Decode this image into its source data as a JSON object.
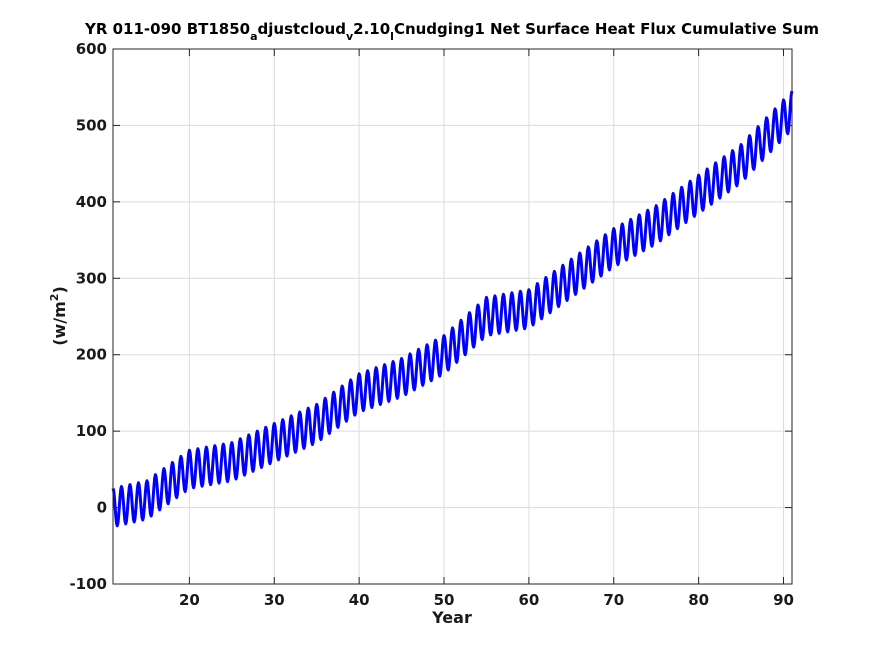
{
  "chart_data": {
    "type": "line",
    "title": {
      "p1": "YR 011-090 BT1850",
      "s1": "a",
      "p2": "djustcloud",
      "s2": "v",
      "p3": "2.10",
      "s3": "l",
      "p4": "Cnudging1 Net Surface Heat Flux  Cumulative Sum"
    },
    "xlabel": "Year",
    "ylabel": {
      "base": "(w/m",
      "sup": "2",
      "close": ")"
    },
    "xlim": [
      11,
      91
    ],
    "ylim": [
      -100,
      600
    ],
    "xticks": [
      20,
      30,
      40,
      50,
      60,
      70,
      80,
      90
    ],
    "yticks": [
      -100,
      0,
      100,
      200,
      300,
      400,
      500,
      600
    ],
    "grid": true,
    "series": [
      {
        "color": "#0000ff",
        "sampling": "monthly",
        "seasonal_amplitude": 25,
        "trend": {
          "years": [
            11,
            15,
            20,
            25,
            30,
            35,
            40,
            45,
            50,
            55,
            60,
            65,
            70,
            75,
            80,
            85,
            91
          ],
          "values": [
            0,
            10,
            50,
            60,
            85,
            110,
            150,
            170,
            200,
            250,
            260,
            300,
            340,
            370,
            410,
            450,
            520
          ]
        }
      }
    ]
  }
}
